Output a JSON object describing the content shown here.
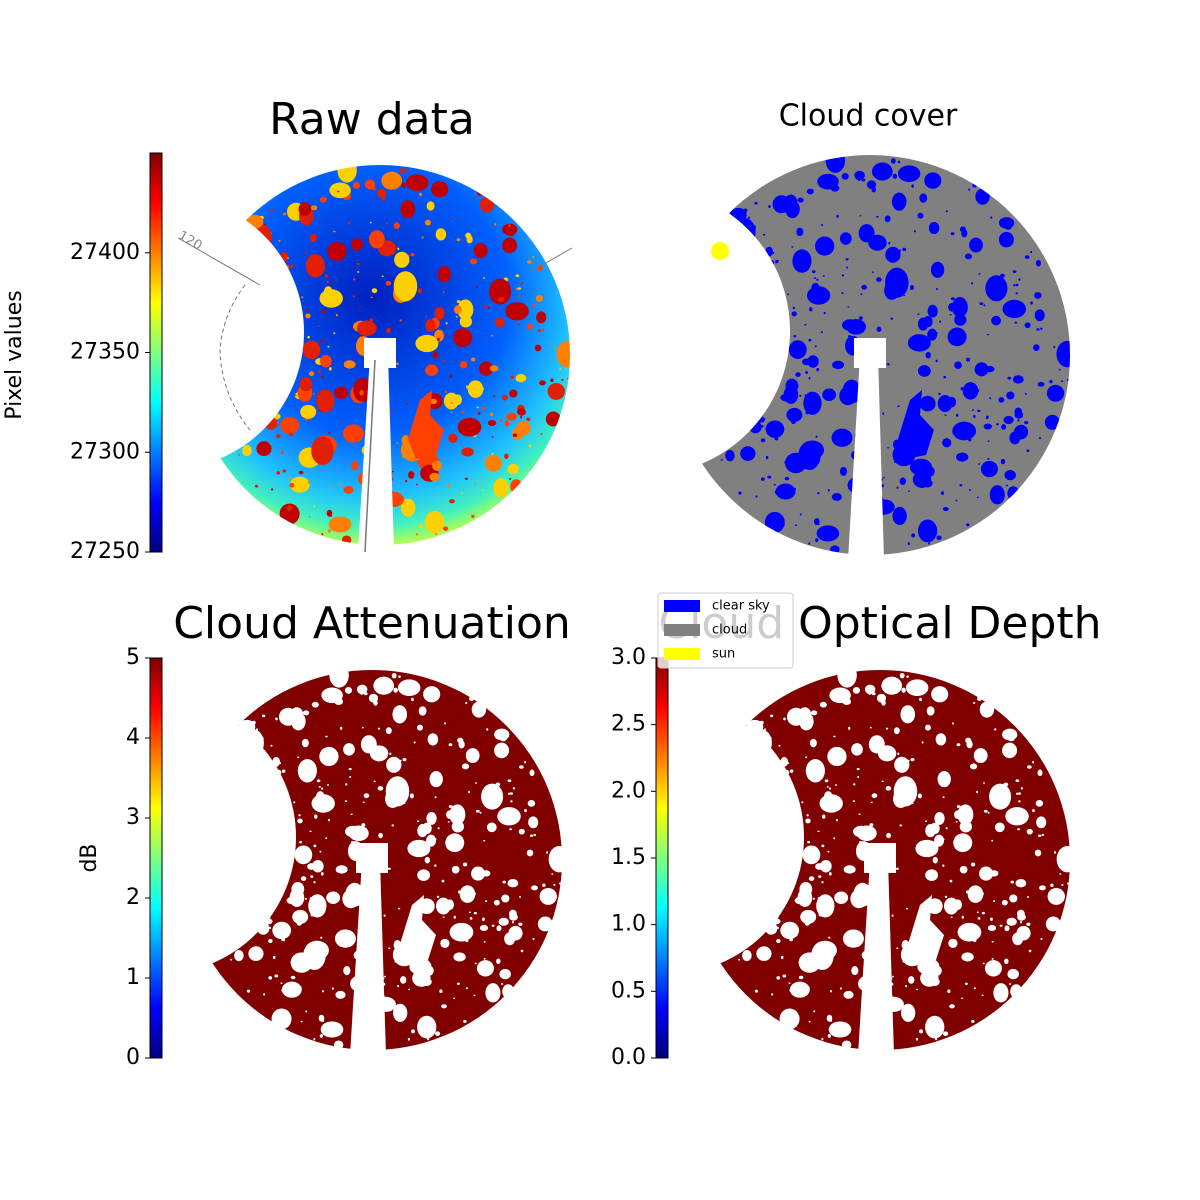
{
  "chart_data": [
    {
      "type": "image",
      "title": "Raw data",
      "cmap": "jet",
      "colorbar_label": "Pixel values",
      "clim": [
        27250,
        27450
      ],
      "cticks": [
        27250,
        27300,
        27350,
        27400
      ],
      "annotations": [
        "120"
      ]
    },
    {
      "type": "image",
      "title": "Cloud cover",
      "legend": [
        {
          "name": "clear sky",
          "color": "#0000ff"
        },
        {
          "name": "cloud",
          "color": "#808080"
        },
        {
          "name": "sun",
          "color": "#ffff00"
        }
      ]
    },
    {
      "type": "image",
      "title": "Cloud Attenuation",
      "cmap": "jet",
      "colorbar_label": "dB",
      "clim": [
        0,
        5
      ],
      "cticks": [
        0,
        1,
        2,
        3,
        4,
        5
      ]
    },
    {
      "type": "image",
      "title": "Cloud Optical Depth",
      "cmap": "jet",
      "clim": [
        0,
        3
      ],
      "cticks": [
        {
          "value": 0,
          "label": "0.0"
        },
        0.5,
        {
          "value": 1,
          "label": "1.0"
        },
        1.5,
        {
          "value": 2,
          "label": "2.0"
        },
        2.5,
        {
          "value": 3,
          "label": "3.0"
        }
      ]
    }
  ]
}
